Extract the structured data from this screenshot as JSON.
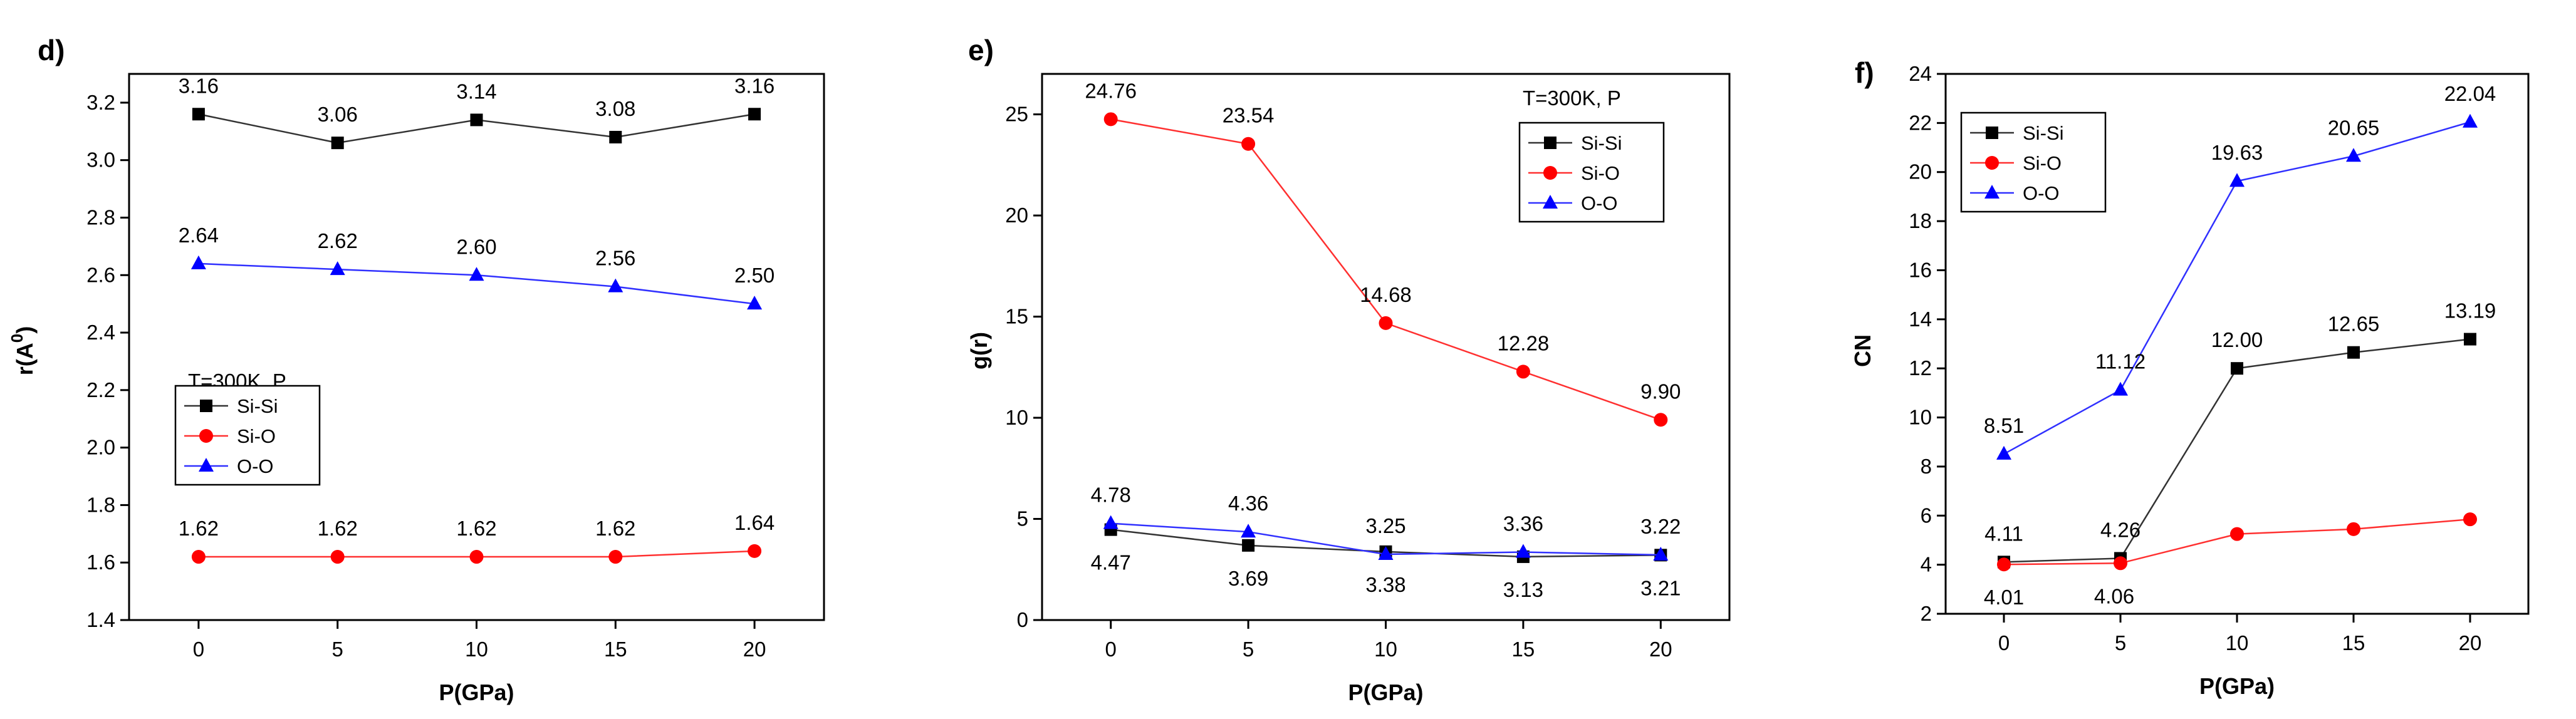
{
  "chart_data": [
    {
      "type": "line",
      "panel": "d)",
      "xlabel": "P(GPa)",
      "ylabel": "r(A",
      "ylabel_sup": "0",
      "ylabel_close": ")",
      "x": [
        0,
        5,
        10,
        15,
        20
      ],
      "xlim": [
        -2.5,
        22.5
      ],
      "ylim": [
        1.4,
        3.3
      ],
      "xticks": [
        0,
        5,
        10,
        15,
        20
      ],
      "xtick_labels": [
        "0",
        "5",
        "10",
        "15",
        "20"
      ],
      "yticks": [
        1.4,
        1.6,
        1.8,
        2.0,
        2.2,
        2.4,
        2.6,
        2.8,
        3.0,
        3.2
      ],
      "ytick_labels": [
        "1.4",
        "1.6",
        "1.8",
        "2.0",
        "2.2",
        "2.4",
        "2.6",
        "2.8",
        "3.0",
        "3.2"
      ],
      "annotation": "T=300K, P",
      "legend": [
        "Si-Si",
        "Si-O",
        "O-O"
      ],
      "series": [
        {
          "name": "Si-Si",
          "color": "#000000",
          "line_color": "#333333",
          "marker": "square",
          "values": [
            3.16,
            3.06,
            3.14,
            3.08,
            3.16
          ],
          "labels": [
            "3.16",
            "3.06",
            "3.14",
            "3.08",
            "3.16"
          ],
          "label_pos": "above"
        },
        {
          "name": "Si-O",
          "color": "#ff0000",
          "line_color": "#ff3030",
          "marker": "circle",
          "values": [
            1.62,
            1.62,
            1.62,
            1.62,
            1.64
          ],
          "labels": [
            "1.62",
            "1.62",
            "1.62",
            "1.62",
            "1.64"
          ],
          "label_pos": "above"
        },
        {
          "name": "O-O",
          "color": "#0000ff",
          "line_color": "#3030ff",
          "marker": "triangle",
          "values": [
            2.64,
            2.62,
            2.6,
            2.56,
            2.5
          ],
          "labels": [
            "2.64",
            "2.62",
            "2.60",
            "2.56",
            "2.50"
          ],
          "label_pos": "above"
        }
      ]
    },
    {
      "type": "line",
      "panel": "e)",
      "xlabel": "P(GPa)",
      "ylabel": "g(r)",
      "x": [
        0,
        5,
        10,
        15,
        20
      ],
      "xlim": [
        -2.5,
        22.5
      ],
      "ylim": [
        0,
        27
      ],
      "xticks": [
        0,
        5,
        10,
        15,
        20
      ],
      "xtick_labels": [
        "0",
        "5",
        "10",
        "15",
        "20"
      ],
      "yticks": [
        0,
        5,
        10,
        15,
        20,
        25
      ],
      "ytick_labels": [
        "0",
        "5",
        "10",
        "15",
        "20",
        "25"
      ],
      "annotation": "T=300K, P",
      "legend": [
        "Si-Si",
        "Si-O",
        "O-O"
      ],
      "series": [
        {
          "name": "Si-Si",
          "color": "#000000",
          "line_color": "#333333",
          "marker": "square",
          "values": [
            4.47,
            3.69,
            3.38,
            3.13,
            3.21
          ],
          "labels": [
            "4.47",
            "3.69",
            "3.38",
            "3.13",
            "3.21"
          ],
          "label_pos": "below"
        },
        {
          "name": "Si-O",
          "color": "#ff0000",
          "line_color": "#ff3030",
          "marker": "circle",
          "values": [
            24.76,
            23.54,
            14.68,
            12.28,
            9.9
          ],
          "labels": [
            "24.76",
            "23.54",
            "14.68",
            "12.28",
            "9.90"
          ],
          "label_pos": "above"
        },
        {
          "name": "O-O",
          "color": "#0000ff",
          "line_color": "#3030ff",
          "marker": "triangle",
          "values": [
            4.78,
            4.36,
            3.25,
            3.36,
            3.22
          ],
          "labels": [
            "4.78",
            "4.36",
            "3.25",
            "3.36",
            "3.22"
          ],
          "label_pos": "above"
        }
      ]
    },
    {
      "type": "line",
      "panel": "f)",
      "xlabel": "P(GPa)",
      "ylabel": "CN",
      "x": [
        0,
        5,
        10,
        15,
        20
      ],
      "xlim": [
        -2.5,
        22.5
      ],
      "ylim": [
        2,
        24
      ],
      "xticks": [
        0,
        5,
        10,
        15,
        20
      ],
      "xtick_labels": [
        "0",
        "5",
        "10",
        "15",
        "20"
      ],
      "yticks": [
        2,
        4,
        6,
        8,
        10,
        12,
        14,
        16,
        18,
        20,
        22,
        24
      ],
      "ytick_labels": [
        "2",
        "4",
        "6",
        "8",
        "10",
        "12",
        "14",
        "16",
        "18",
        "20",
        "22",
        "24"
      ],
      "legend": [
        "Si-Si",
        "Si-O",
        "O-O"
      ],
      "series": [
        {
          "name": "Si-Si",
          "color": "#000000",
          "line_color": "#333333",
          "marker": "square",
          "values": [
            4.11,
            4.26,
            12.0,
            12.65,
            13.19
          ],
          "labels": [
            "4.11",
            "4.26",
            "12.00",
            "12.65",
            "13.19"
          ],
          "label_pos": "above"
        },
        {
          "name": "Si-O",
          "color": "#ff0000",
          "line_color": "#ff3030",
          "marker": "circle",
          "values": [
            4.01,
            4.06,
            5.25,
            5.45,
            5.85
          ],
          "labels": [
            "4.01",
            "4.06",
            "",
            "",
            ""
          ],
          "label_pos": "below"
        },
        {
          "name": "O-O",
          "color": "#0000ff",
          "line_color": "#3030ff",
          "marker": "triangle",
          "values": [
            8.51,
            11.12,
            19.63,
            20.65,
            22.04
          ],
          "labels": [
            "8.51",
            "11.12",
            "19.63",
            "20.65",
            "22.04"
          ],
          "label_pos": "above"
        }
      ]
    }
  ]
}
